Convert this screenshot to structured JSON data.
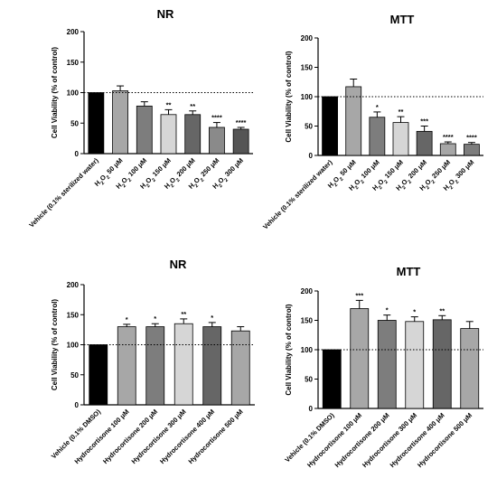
{
  "chart_data": [
    {
      "type": "bar",
      "title": "NR",
      "ylabel": "Cell Viability (% of control)",
      "ylim": [
        0,
        200
      ],
      "yticks": [
        "0",
        "50",
        "100",
        "150",
        "200"
      ],
      "reference_line": 100,
      "categories": [
        {
          "prefix": "Vehicle (0.1% sterilized water)"
        },
        {
          "prefix": "H",
          "sub": "2",
          "mid": "O",
          "sub2": "2",
          "suffix": " 50 μM"
        },
        {
          "prefix": "H",
          "sub": "2",
          "mid": "O",
          "sub2": "2",
          "suffix": " 100 μM"
        },
        {
          "prefix": "H",
          "sub": "2",
          "mid": "O",
          "sub2": "2",
          "suffix": " 150 μM"
        },
        {
          "prefix": "H",
          "sub": "2",
          "mid": "O",
          "sub2": "2",
          "suffix": " 200 μM"
        },
        {
          "prefix": "H",
          "sub": "2",
          "mid": "O",
          "sub2": "2",
          "suffix": " 250 μM"
        },
        {
          "prefix": "H",
          "sub": "2",
          "mid": "O",
          "sub2": "2",
          "suffix": " 300 μM"
        }
      ],
      "values": [
        100,
        103,
        78,
        64,
        64,
        43,
        40
      ],
      "errors": [
        0,
        8,
        7,
        8,
        6,
        8,
        3
      ],
      "significance": [
        "",
        "",
        "",
        "**",
        "**",
        "****",
        "****"
      ],
      "colors": [
        "#000000",
        "#a7a7a7",
        "#7d7d7d",
        "#d6d6d6",
        "#666666",
        "#8a8a8a",
        "#555555"
      ]
    },
    {
      "type": "bar",
      "title": "MTT",
      "ylabel": "Cell Viability (% of control)",
      "ylim": [
        0,
        200
      ],
      "yticks": [
        "0",
        "50",
        "100",
        "150",
        "200"
      ],
      "reference_line": 100,
      "categories": [
        {
          "prefix": "Vehicle (0.1% sterilized water)"
        },
        {
          "prefix": "H",
          "sub": "2",
          "mid": "O",
          "sub2": "2",
          "suffix": " 50 μM"
        },
        {
          "prefix": "H",
          "sub": "2",
          "mid": "O",
          "sub2": "2",
          "suffix": " 100 μM"
        },
        {
          "prefix": "H",
          "sub": "2",
          "mid": "O",
          "sub2": "2",
          "suffix": " 150 μM"
        },
        {
          "prefix": "H",
          "sub": "2",
          "mid": "O",
          "sub2": "2",
          "suffix": " 200 μM"
        },
        {
          "prefix": "H",
          "sub": "2",
          "mid": "O",
          "sub2": "2",
          "suffix": " 250 μM"
        },
        {
          "prefix": "H",
          "sub": "2",
          "mid": "O",
          "sub2": "2",
          "suffix": " 300 μM"
        }
      ],
      "values": [
        100,
        117,
        65,
        56,
        41,
        20,
        19
      ],
      "errors": [
        0,
        13,
        9,
        10,
        9,
        3,
        3
      ],
      "significance": [
        "",
        "",
        "*",
        "**",
        "***",
        "****",
        "****"
      ],
      "colors": [
        "#000000",
        "#a7a7a7",
        "#7d7d7d",
        "#d6d6d6",
        "#666666",
        "#a7a7a7",
        "#7d7d7d"
      ]
    },
    {
      "type": "bar",
      "title": "NR",
      "ylabel": "Cell Viability (% of control)",
      "ylim": [
        0,
        200
      ],
      "yticks": [
        "0",
        "50",
        "100",
        "150",
        "200"
      ],
      "reference_line": 100,
      "categories": [
        {
          "prefix": "Vehicle (0.1% DMSO)"
        },
        {
          "prefix": "Hydrocortisone 100 μM"
        },
        {
          "prefix": "Hydrocortisone 200 μM"
        },
        {
          "prefix": "Hydrocortisone 300 μM"
        },
        {
          "prefix": "Hydrocortisone 400 μM"
        },
        {
          "prefix": "Hydrocortisone 500 μM"
        }
      ],
      "values": [
        100,
        130,
        130,
        135,
        130,
        123
      ],
      "errors": [
        0,
        4,
        5,
        8,
        7,
        7
      ],
      "significance": [
        "",
        "*",
        "*",
        "**",
        "*",
        ""
      ],
      "colors": [
        "#000000",
        "#a7a7a7",
        "#7d7d7d",
        "#d6d6d6",
        "#666666",
        "#a7a7a7"
      ]
    },
    {
      "type": "bar",
      "title": "MTT",
      "ylabel": "Cell Viability (% of control)",
      "ylim": [
        0,
        200
      ],
      "yticks": [
        "0",
        "50",
        "100",
        "150",
        "200"
      ],
      "reference_line": 100,
      "categories": [
        {
          "prefix": "Vehicle (0.1% DMSO)"
        },
        {
          "prefix": "Hydrocortisone 100 μM"
        },
        {
          "prefix": "Hydrocortisone 200 μM"
        },
        {
          "prefix": "Hydrocortisone 300 μM"
        },
        {
          "prefix": "Hydrocortisone 400 μM"
        },
        {
          "prefix": "Hydrocortisone 500 μM"
        }
      ],
      "values": [
        100,
        170,
        150,
        148,
        151,
        136
      ],
      "errors": [
        0,
        14,
        9,
        8,
        7,
        12
      ],
      "significance": [
        "",
        "***",
        "*",
        "*",
        "**",
        ""
      ],
      "colors": [
        "#000000",
        "#a7a7a7",
        "#7d7d7d",
        "#d6d6d6",
        "#666666",
        "#a7a7a7"
      ]
    }
  ]
}
